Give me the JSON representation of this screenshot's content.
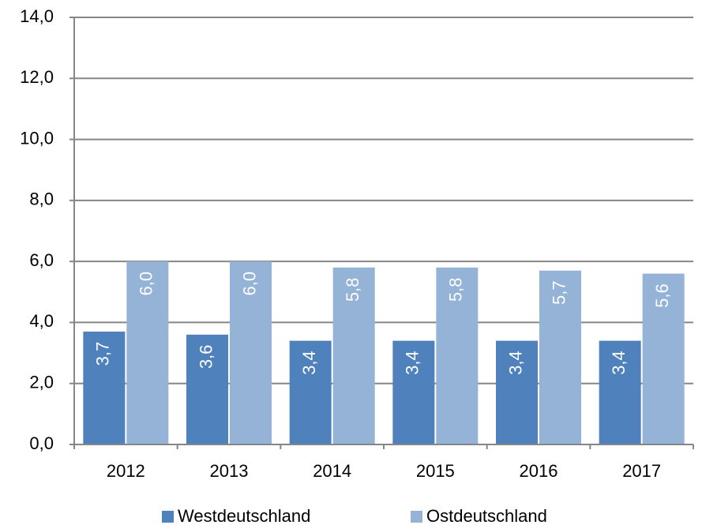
{
  "chart_data": {
    "type": "bar",
    "categories": [
      "2012",
      "2013",
      "2014",
      "2015",
      "2016",
      "2017"
    ],
    "series": [
      {
        "name": "Westdeutschland",
        "color": "#4f81bd",
        "values": [
          3.7,
          3.6,
          3.4,
          3.4,
          3.4,
          3.4
        ],
        "value_labels": [
          "3,7",
          "3,6",
          "3,4",
          "3,4",
          "3,4",
          "3,4"
        ]
      },
      {
        "name": "Ostdeutschland",
        "color": "#95b3d7",
        "values": [
          6.0,
          6.0,
          5.8,
          5.8,
          5.7,
          5.6
        ],
        "value_labels": [
          "6,0",
          "6,0",
          "5,8",
          "5,8",
          "5,7",
          "5,6"
        ]
      }
    ],
    "ylim": [
      0,
      14
    ],
    "yticks": [
      {
        "value": 0,
        "label": "0,0"
      },
      {
        "value": 2,
        "label": "2,0"
      },
      {
        "value": 4,
        "label": "4,0"
      },
      {
        "value": 6,
        "label": "6,0"
      },
      {
        "value": 8,
        "label": "8,0"
      },
      {
        "value": 10,
        "label": "10,0"
      },
      {
        "value": 12,
        "label": "12,0"
      },
      {
        "value": 14,
        "label": "14,0"
      }
    ],
    "grid": true,
    "legend": "bottom"
  }
}
